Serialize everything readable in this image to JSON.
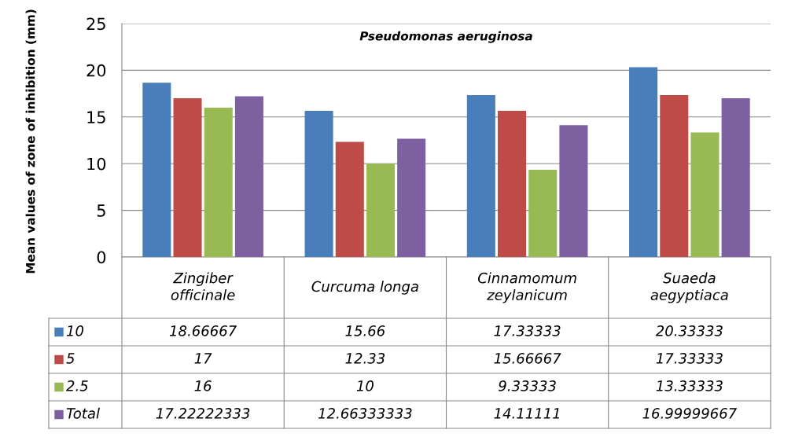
{
  "chart_data": {
    "type": "bar",
    "title": "Pseudomonas aeruginosa",
    "ylabel": "Mean values of zone of inhibition (mm)",
    "categories": [
      "Zingiber officinale",
      "Curcuma longa",
      "Cinnamomum zeylanicum",
      "Suaeda aegyptiaca"
    ],
    "series": [
      {
        "name": "10",
        "color": "#4a7ebb",
        "values": [
          18.66667,
          15.66,
          17.33333,
          20.33333
        ]
      },
      {
        "name": "5",
        "color": "#be4b48",
        "values": [
          17,
          12.33,
          15.66667,
          17.33333
        ]
      },
      {
        "name": "2.5",
        "color": "#98b954",
        "values": [
          16,
          10,
          9.33333,
          13.33333
        ]
      },
      {
        "name": "Total",
        "color": "#7d60a0",
        "values": [
          17.22222333,
          12.66333333,
          14.11111,
          16.99999667
        ]
      }
    ],
    "ylim": [
      0,
      25
    ],
    "yticks": [
      0,
      5,
      10,
      15,
      20,
      25
    ],
    "grid": "y",
    "data_labels": true,
    "legend": "bottom left"
  }
}
